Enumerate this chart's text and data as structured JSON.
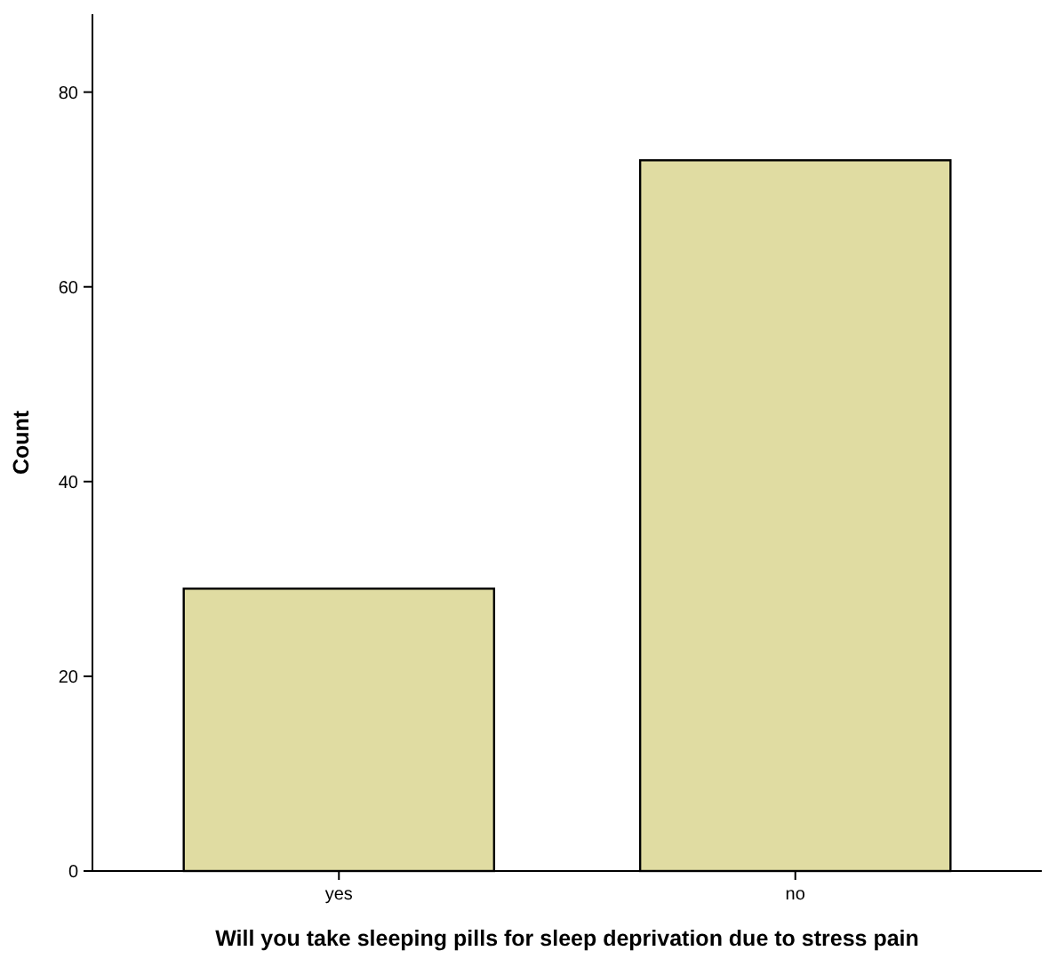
{
  "chart_data": {
    "type": "bar",
    "xlabel": "Will you take sleeping pills for sleep deprivation due to stress pain",
    "ylabel": "Count",
    "categories": [
      "yes",
      "no"
    ],
    "values": [
      29,
      73
    ],
    "color": "#e0dca2",
    "ylim": [
      0,
      88
    ],
    "yticks": [
      0,
      20,
      40,
      60,
      80
    ],
    "grid": false
  }
}
